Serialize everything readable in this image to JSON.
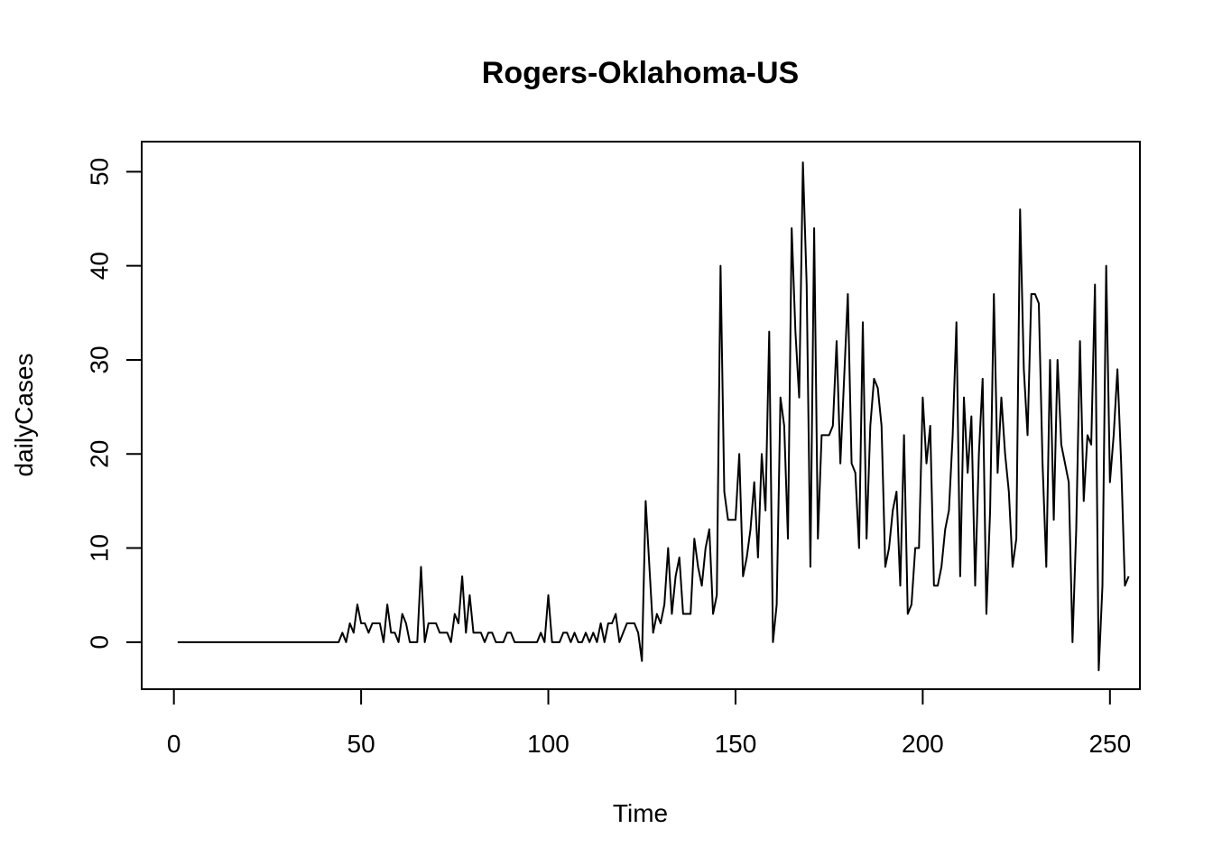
{
  "chart_data": {
    "type": "line",
    "title": "Rogers-Oklahoma-US",
    "xlabel": "Time",
    "ylabel": "dailyCases",
    "xlim": [
      -8.6,
      258
    ],
    "ylim": [
      -5,
      53.2
    ],
    "xticks": [
      0,
      50,
      100,
      150,
      200,
      250
    ],
    "yticks": [
      0,
      10,
      20,
      30,
      40,
      50
    ],
    "grid": false,
    "legend": "none",
    "colors": {
      "line": "#000000",
      "axis": "#000000",
      "background": "#ffffff"
    },
    "series": [
      {
        "values": [
          0,
          0,
          0,
          0,
          0,
          0,
          0,
          0,
          0,
          0,
          0,
          0,
          0,
          0,
          0,
          0,
          0,
          0,
          0,
          0,
          0,
          0,
          0,
          0,
          0,
          0,
          0,
          0,
          0,
          0,
          0,
          0,
          0,
          0,
          0,
          0,
          0,
          0,
          0,
          0,
          0,
          0,
          0,
          0,
          1,
          0,
          2,
          1,
          4,
          2,
          2,
          1,
          2,
          2,
          2,
          0,
          4,
          1,
          1,
          0,
          3,
          2,
          0,
          0,
          0,
          8,
          0,
          2,
          2,
          2,
          1,
          1,
          1,
          0,
          3,
          2,
          7,
          1,
          5,
          1,
          1,
          1,
          0,
          1,
          1,
          0,
          0,
          0,
          1,
          1,
          0,
          0,
          0,
          0,
          0,
          0,
          0,
          1,
          0,
          5,
          0,
          0,
          0,
          1,
          1,
          0,
          1,
          0,
          0,
          1,
          0,
          1,
          0,
          2,
          0,
          2,
          2,
          3,
          0,
          1,
          2,
          2,
          2,
          1,
          -2,
          15,
          8,
          1,
          3,
          2,
          4,
          10,
          3,
          7,
          9,
          3,
          3,
          3,
          11,
          8,
          6,
          10,
          12,
          3,
          5,
          40,
          16,
          13,
          13,
          13,
          20,
          7,
          9,
          12,
          17,
          9,
          20,
          14,
          33,
          0,
          4,
          26,
          23,
          11,
          44,
          33,
          26,
          51,
          38,
          8,
          44,
          11,
          22,
          22,
          22,
          23,
          32,
          19,
          28,
          37,
          19,
          18,
          10,
          34,
          11,
          23,
          28,
          27,
          23,
          8,
          10,
          14,
          16,
          6,
          22,
          3,
          4,
          10,
          10,
          26,
          19,
          23,
          6,
          6,
          8,
          12,
          14,
          22,
          34,
          7,
          26,
          18,
          24,
          6,
          20,
          28,
          3,
          14,
          37,
          18,
          26,
          20,
          16,
          8,
          11,
          46,
          29,
          22,
          37,
          37,
          36,
          19,
          8,
          30,
          13,
          30,
          21,
          19,
          17,
          0,
          12,
          32,
          15,
          22,
          21,
          38,
          -3,
          6,
          40,
          17,
          22,
          29,
          19,
          6,
          7
        ]
      }
    ]
  }
}
